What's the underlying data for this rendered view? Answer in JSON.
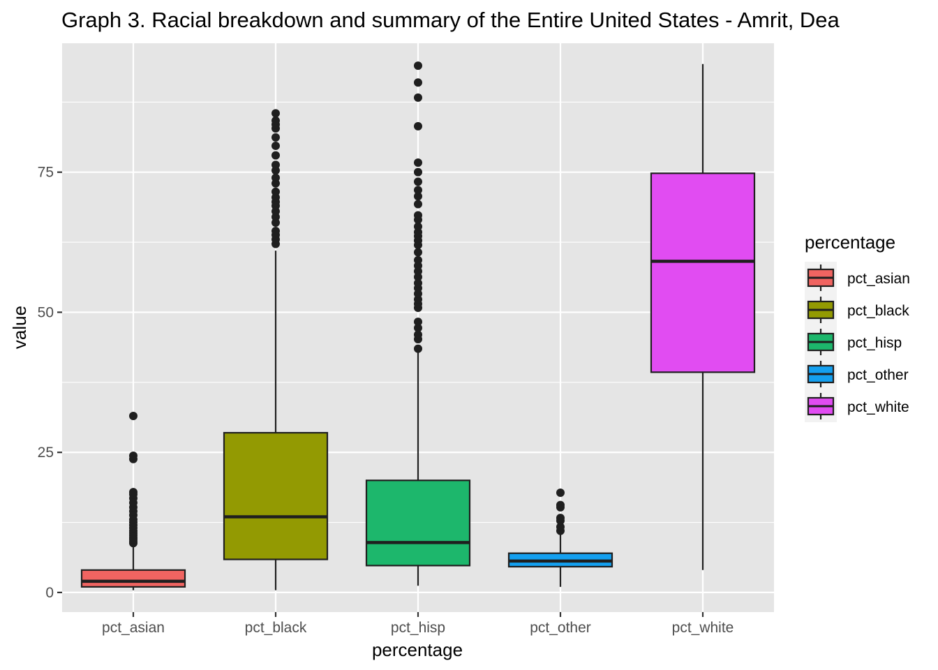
{
  "chart_data": {
    "type": "boxplot",
    "title": "Graph 3. Racial breakdown and summary of the Entire United States - Amrit, Dea",
    "xlabel": "percentage",
    "ylabel": "value",
    "categories": [
      "pct_asian",
      "pct_black",
      "pct_hisp",
      "pct_other",
      "pct_white"
    ],
    "ylim": [
      -3.5,
      98
    ],
    "yticks": [
      0,
      25,
      50,
      75
    ],
    "grid": true,
    "legend": {
      "title": "percentage",
      "placement": "right",
      "entries": [
        "pct_asian",
        "pct_black",
        "pct_hisp",
        "pct_other",
        "pct_white"
      ]
    },
    "colors": {
      "panel": "#e5e5e5",
      "grid": "#ffffff",
      "outline": "#1f1f1f",
      "pct_asian": "#f06461",
      "pct_black": "#939a02",
      "pct_hisp": "#1db76c",
      "pct_other": "#14a0f0",
      "pct_white": "#e14cf2"
    },
    "boxes": [
      {
        "name": "pct_asian",
        "min": 0.4,
        "q1": 1.0,
        "median": 2.0,
        "q3": 4.0,
        "max": 8.5,
        "outliers": [
          8.8,
          9.1,
          9.5,
          9.8,
          10.2,
          10.6,
          11.0,
          11.5,
          12.0,
          12.5,
          13.0,
          13.8,
          14.5,
          15.2,
          16.0,
          16.8,
          17.5,
          17.9,
          23.8,
          24.4,
          31.5
        ]
      },
      {
        "name": "pct_black",
        "min": 0.4,
        "q1": 5.9,
        "median": 13.5,
        "q3": 28.5,
        "max": 61.0,
        "outliers": [
          62.2,
          63.0,
          63.8,
          64.5,
          66.0,
          67.0,
          68.0,
          69.0,
          69.7,
          70.5,
          71.5,
          73.0,
          74.0,
          75.3,
          76.3,
          78.0,
          79.7,
          81.2,
          82.8,
          83.5,
          84.2,
          85.5
        ]
      },
      {
        "name": "pct_hisp",
        "min": 1.2,
        "q1": 4.8,
        "median": 8.9,
        "q3": 20.0,
        "max": 43.0,
        "outliers": [
          43.5,
          45.2,
          46.0,
          47.2,
          48.3,
          50.8,
          51.5,
          52.3,
          53.3,
          54.3,
          55.2,
          56.3,
          57.3,
          58.3,
          59.3,
          60.7,
          62.0,
          62.8,
          63.6,
          64.3,
          65.3,
          66.5,
          67.3,
          69.3,
          70.7,
          71.8,
          73.3,
          75.0,
          76.7,
          83.2,
          88.3,
          91.0,
          94.0
        ]
      },
      {
        "name": "pct_other",
        "min": 1.0,
        "q1": 4.6,
        "median": 5.6,
        "q3": 7.0,
        "max": 10.6,
        "outliers": [
          11.0,
          11.7,
          12.8,
          13.3,
          15.2,
          15.6,
          17.8
        ]
      },
      {
        "name": "pct_white",
        "min": 4.0,
        "q1": 39.3,
        "median": 59.1,
        "q3": 74.8,
        "max": 94.3,
        "outliers": []
      }
    ]
  }
}
